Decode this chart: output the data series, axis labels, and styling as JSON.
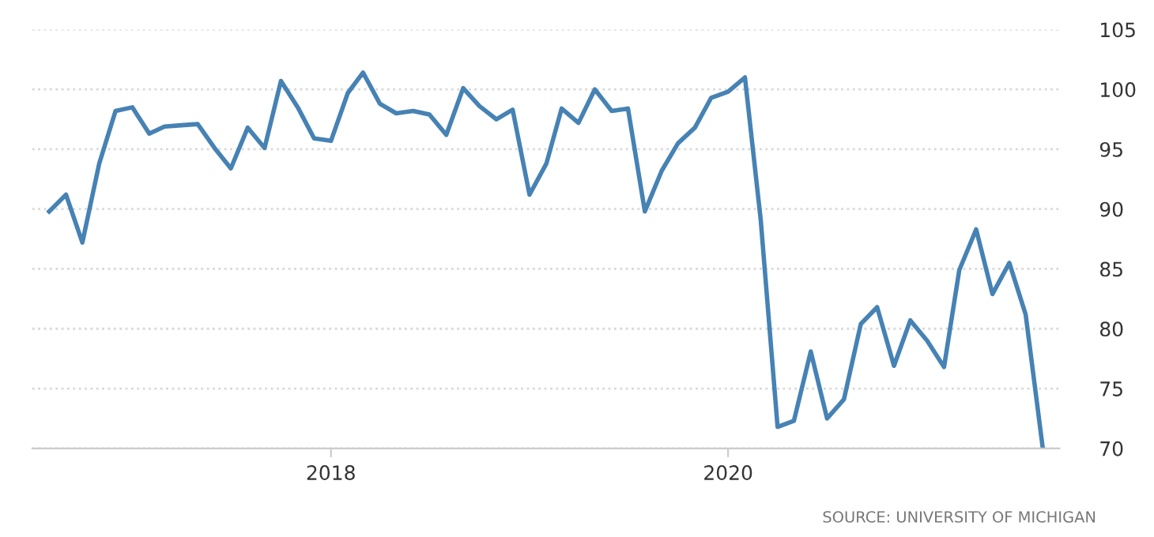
{
  "chart_data": {
    "type": "line",
    "x": [
      "2016-08",
      "2016-09",
      "2016-10",
      "2016-11",
      "2016-12",
      "2017-01",
      "2017-02",
      "2017-03",
      "2017-04",
      "2017-05",
      "2017-06",
      "2017-07",
      "2017-08",
      "2017-09",
      "2017-10",
      "2017-11",
      "2017-12",
      "2018-01",
      "2018-02",
      "2018-03",
      "2018-04",
      "2018-05",
      "2018-06",
      "2018-07",
      "2018-08",
      "2018-09",
      "2018-10",
      "2018-11",
      "2018-12",
      "2019-01",
      "2019-02",
      "2019-03",
      "2019-04",
      "2019-05",
      "2019-06",
      "2019-07",
      "2019-08",
      "2019-09",
      "2019-10",
      "2019-11",
      "2019-12",
      "2020-01",
      "2020-02",
      "2020-03",
      "2020-04",
      "2020-05",
      "2020-06",
      "2020-07",
      "2020-08",
      "2020-09",
      "2020-10",
      "2020-11",
      "2020-12",
      "2021-01",
      "2021-02",
      "2021-03",
      "2021-04",
      "2021-05",
      "2021-06",
      "2021-07",
      "2021-08"
    ],
    "series": [
      {
        "color": "#4682b4",
        "values": [
          89.8,
          91.2,
          87.2,
          93.8,
          98.2,
          98.5,
          96.3,
          96.9,
          97.0,
          97.1,
          95.1,
          93.4,
          96.8,
          95.1,
          100.7,
          98.5,
          95.9,
          95.7,
          99.7,
          101.4,
          98.8,
          98.0,
          98.2,
          97.9,
          96.2,
          100.1,
          98.6,
          97.5,
          98.3,
          91.2,
          93.8,
          98.4,
          97.2,
          100.0,
          98.2,
          98.4,
          89.8,
          93.2,
          95.5,
          96.8,
          99.3,
          99.8,
          101.0,
          89.1,
          71.8,
          72.3,
          78.1,
          72.5,
          74.1,
          80.4,
          81.8,
          76.9,
          80.7,
          79.0,
          76.8,
          84.9,
          88.3,
          82.9,
          85.5,
          81.2,
          70.2
        ]
      }
    ],
    "xlim": [
      "2016-07",
      "2021-09"
    ],
    "xticks": [
      "2018",
      "2020"
    ],
    "ylim": [
      70,
      105
    ],
    "yticks": [
      70,
      75,
      80,
      85,
      90,
      95,
      100,
      105
    ],
    "grid": "y",
    "marker": "none",
    "line_style": "solid",
    "annotations": [
      "SOURCE: UNIVERSITY OF MICHIGAN"
    ]
  }
}
